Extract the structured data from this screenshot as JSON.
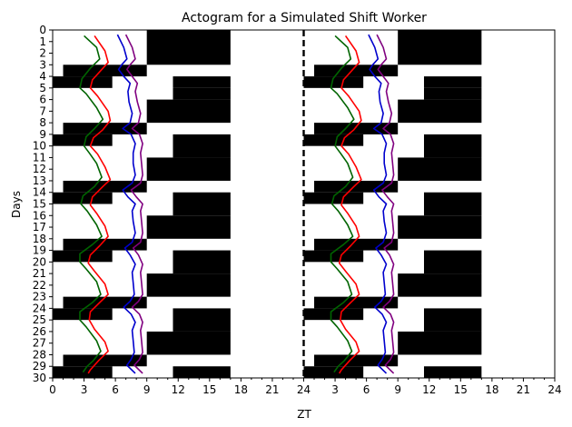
{
  "chart_data": {
    "type": "actogram",
    "title": "Actogram for a Simulated Shift Worker",
    "xlabel": "ZT",
    "ylabel": "Days",
    "xlim": [
      0,
      48
    ],
    "ylim": [
      0,
      30
    ],
    "x_tick_labels": [
      "0",
      "3",
      "6",
      "9",
      "12",
      "15",
      "18",
      "21",
      "24",
      "3",
      "6",
      "9",
      "12",
      "15",
      "18",
      "21",
      "24"
    ],
    "y_tick_labels": [
      "0",
      "1",
      "2",
      "3",
      "4",
      "5",
      "6",
      "7",
      "8",
      "9",
      "10",
      "11",
      "12",
      "13",
      "14",
      "15",
      "16",
      "17",
      "18",
      "19",
      "20",
      "21",
      "22",
      "23",
      "24",
      "25",
      "26",
      "27",
      "28",
      "29",
      "30"
    ],
    "divider": {
      "x": 24,
      "style": "dashed",
      "color": "#000000"
    },
    "activity_color": "#000000",
    "activity_blocks": [
      {
        "day_start": 0,
        "day_end": 3,
        "zt_start": 9,
        "zt_end": 17
      },
      {
        "day_start": 3,
        "day_end": 4,
        "zt_start": 1,
        "zt_end": 9
      },
      {
        "day_start": 4,
        "day_end": 5,
        "zt_start": 0,
        "zt_end": 5.7
      },
      {
        "day_start": 4,
        "day_end": 5,
        "zt_start": 11.5,
        "zt_end": 17
      },
      {
        "day_start": 5,
        "day_end": 6,
        "zt_start": 11.5,
        "zt_end": 17
      },
      {
        "day_start": 6,
        "day_end": 8,
        "zt_start": 9,
        "zt_end": 17
      },
      {
        "day_start": 8,
        "day_end": 9,
        "zt_start": 1,
        "zt_end": 9
      },
      {
        "day_start": 9,
        "day_end": 10,
        "zt_start": 0,
        "zt_end": 5.7
      },
      {
        "day_start": 9,
        "day_end": 11,
        "zt_start": 11.5,
        "zt_end": 17
      },
      {
        "day_start": 11,
        "day_end": 13,
        "zt_start": 9,
        "zt_end": 17
      },
      {
        "day_start": 13,
        "day_end": 14,
        "zt_start": 1,
        "zt_end": 9
      },
      {
        "day_start": 14,
        "day_end": 15,
        "zt_start": 0,
        "zt_end": 5.7
      },
      {
        "day_start": 14,
        "day_end": 16,
        "zt_start": 11.5,
        "zt_end": 17
      },
      {
        "day_start": 16,
        "day_end": 18,
        "zt_start": 9,
        "zt_end": 17
      },
      {
        "day_start": 18,
        "day_end": 19,
        "zt_start": 1,
        "zt_end": 9
      },
      {
        "day_start": 19,
        "day_end": 20,
        "zt_start": 0,
        "zt_end": 5.7
      },
      {
        "day_start": 19,
        "day_end": 21,
        "zt_start": 11.5,
        "zt_end": 17
      },
      {
        "day_start": 21,
        "day_end": 23,
        "zt_start": 9,
        "zt_end": 17
      },
      {
        "day_start": 23,
        "day_end": 24,
        "zt_start": 1,
        "zt_end": 9
      },
      {
        "day_start": 24,
        "day_end": 25,
        "zt_start": 0,
        "zt_end": 5.7
      },
      {
        "day_start": 24,
        "day_end": 26,
        "zt_start": 11.5,
        "zt_end": 17
      },
      {
        "day_start": 26,
        "day_end": 28,
        "zt_start": 9,
        "zt_end": 17
      },
      {
        "day_start": 28,
        "day_end": 29,
        "zt_start": 1,
        "zt_end": 9
      },
      {
        "day_start": 29,
        "day_end": 30,
        "zt_start": 0,
        "zt_end": 5.7
      },
      {
        "day_start": 29,
        "day_end": 30,
        "zt_start": 11.5,
        "zt_end": 17
      }
    ],
    "series": [
      {
        "color": "#006400",
        "points": [
          [
            3.0,
            0.5
          ],
          [
            4.2,
            1.5
          ],
          [
            4.5,
            2.5
          ],
          [
            3.6,
            3.3
          ],
          [
            2.8,
            4.2
          ],
          [
            2.6,
            5.0
          ],
          [
            3.2,
            5.5
          ],
          [
            4.2,
            6.7
          ],
          [
            4.8,
            7.7
          ],
          [
            4.0,
            8.5
          ],
          [
            3.2,
            9.2
          ],
          [
            3.0,
            10.0
          ],
          [
            3.5,
            10.6
          ],
          [
            4.2,
            11.5
          ],
          [
            4.7,
            12.7
          ],
          [
            4.0,
            13.5
          ],
          [
            2.9,
            14.3
          ],
          [
            2.7,
            15.0
          ],
          [
            3.3,
            15.6
          ],
          [
            4.2,
            16.8
          ],
          [
            4.7,
            17.8
          ],
          [
            3.8,
            18.5
          ],
          [
            2.6,
            19.3
          ],
          [
            2.6,
            20.0
          ],
          [
            3.2,
            20.6
          ],
          [
            4.2,
            21.7
          ],
          [
            4.6,
            22.8
          ],
          [
            3.8,
            23.5
          ],
          [
            2.6,
            24.3
          ],
          [
            2.6,
            25.0
          ],
          [
            3.2,
            25.6
          ],
          [
            4.2,
            26.8
          ],
          [
            4.6,
            27.7
          ],
          [
            3.9,
            28.5
          ],
          [
            3.3,
            29.0
          ],
          [
            2.9,
            29.5
          ]
        ]
      },
      {
        "color": "#ff0000",
        "points": [
          [
            4.0,
            0.5
          ],
          [
            5.0,
            1.8
          ],
          [
            5.3,
            2.8
          ],
          [
            4.6,
            3.5
          ],
          [
            3.8,
            4.3
          ],
          [
            3.6,
            5.0
          ],
          [
            4.3,
            5.7
          ],
          [
            5.3,
            7.0
          ],
          [
            5.5,
            7.8
          ],
          [
            4.8,
            8.6
          ],
          [
            3.9,
            9.3
          ],
          [
            3.6,
            10.0
          ],
          [
            4.3,
            10.7
          ],
          [
            5.0,
            11.8
          ],
          [
            5.5,
            12.9
          ],
          [
            4.8,
            13.5
          ],
          [
            3.8,
            14.4
          ],
          [
            3.6,
            15.1
          ],
          [
            4.2,
            15.8
          ],
          [
            5.0,
            16.9
          ],
          [
            5.3,
            17.8
          ],
          [
            4.5,
            18.6
          ],
          [
            3.6,
            19.4
          ],
          [
            3.4,
            20.1
          ],
          [
            4.0,
            20.8
          ],
          [
            5.0,
            21.9
          ],
          [
            5.3,
            22.8
          ],
          [
            4.5,
            23.5
          ],
          [
            3.6,
            24.3
          ],
          [
            3.5,
            25.0
          ],
          [
            4.0,
            25.8
          ],
          [
            5.0,
            26.9
          ],
          [
            5.3,
            27.7
          ],
          [
            4.4,
            28.5
          ],
          [
            3.6,
            29.3
          ],
          [
            3.4,
            29.6
          ]
        ]
      },
      {
        "color": "#0000cd",
        "points": [
          [
            6.2,
            0.4
          ],
          [
            6.8,
            1.5
          ],
          [
            7.1,
            2.5
          ],
          [
            6.6,
            3.0
          ],
          [
            6.3,
            3.4
          ],
          [
            6.8,
            4.0
          ],
          [
            7.4,
            4.6
          ],
          [
            7.2,
            5.3
          ],
          [
            7.3,
            6.2
          ],
          [
            7.6,
            7.2
          ],
          [
            7.4,
            8.0
          ],
          [
            6.7,
            8.5
          ],
          [
            7.5,
            9.0
          ],
          [
            7.9,
            9.8
          ],
          [
            7.7,
            10.6
          ],
          [
            7.7,
            11.5
          ],
          [
            7.9,
            12.5
          ],
          [
            7.6,
            13.2
          ],
          [
            6.7,
            13.8
          ],
          [
            7.2,
            14.4
          ],
          [
            7.9,
            15.0
          ],
          [
            7.6,
            15.6
          ],
          [
            7.7,
            16.5
          ],
          [
            7.9,
            17.5
          ],
          [
            7.6,
            18.3
          ],
          [
            6.9,
            18.8
          ],
          [
            7.4,
            19.4
          ],
          [
            7.9,
            20.2
          ],
          [
            7.6,
            20.9
          ],
          [
            7.7,
            21.8
          ],
          [
            7.8,
            22.8
          ],
          [
            7.4,
            23.4
          ],
          [
            6.8,
            23.9
          ],
          [
            7.5,
            24.5
          ],
          [
            7.9,
            25.2
          ],
          [
            7.6,
            25.9
          ],
          [
            7.7,
            26.8
          ],
          [
            7.8,
            27.8
          ],
          [
            7.5,
            28.4
          ],
          [
            7.1,
            28.9
          ],
          [
            7.9,
            29.6
          ]
        ]
      },
      {
        "color": "#800080",
        "points": [
          [
            7.0,
            0.4
          ],
          [
            7.6,
            1.5
          ],
          [
            7.9,
            2.5
          ],
          [
            7.4,
            3.0
          ],
          [
            7.1,
            3.4
          ],
          [
            7.6,
            4.0
          ],
          [
            8.1,
            4.6
          ],
          [
            7.9,
            5.3
          ],
          [
            8.1,
            6.2
          ],
          [
            8.4,
            7.2
          ],
          [
            8.2,
            8.0
          ],
          [
            7.6,
            8.5
          ],
          [
            8.3,
            9.0
          ],
          [
            8.6,
            9.8
          ],
          [
            8.4,
            10.6
          ],
          [
            8.5,
            11.5
          ],
          [
            8.6,
            12.5
          ],
          [
            8.4,
            13.2
          ],
          [
            7.5,
            13.8
          ],
          [
            8.0,
            14.4
          ],
          [
            8.6,
            15.0
          ],
          [
            8.4,
            15.6
          ],
          [
            8.5,
            16.5
          ],
          [
            8.6,
            17.5
          ],
          [
            8.4,
            18.3
          ],
          [
            7.7,
            18.8
          ],
          [
            8.2,
            19.4
          ],
          [
            8.6,
            20.2
          ],
          [
            8.4,
            20.9
          ],
          [
            8.5,
            21.8
          ],
          [
            8.6,
            22.8
          ],
          [
            8.2,
            23.4
          ],
          [
            7.6,
            23.9
          ],
          [
            8.3,
            24.5
          ],
          [
            8.6,
            25.2
          ],
          [
            8.4,
            25.9
          ],
          [
            8.5,
            26.8
          ],
          [
            8.6,
            27.8
          ],
          [
            8.3,
            28.4
          ],
          [
            7.8,
            28.9
          ],
          [
            8.6,
            29.6
          ]
        ]
      }
    ]
  }
}
